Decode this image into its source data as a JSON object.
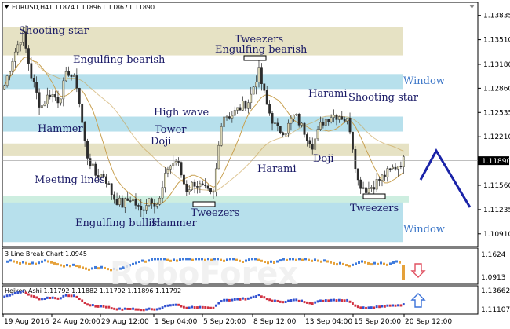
{
  "chart_data": [
    {
      "type": "candlestick",
      "title": "EURUSD,H4",
      "ohlc_header": [
        "1.11874",
        "1.11896",
        "1.11867",
        "1.11890"
      ],
      "current_price": "1.11890",
      "price_ticks": [
        "1.13835",
        "1.13510",
        "1.13180",
        "1.12860",
        "1.12535",
        "1.12210",
        "1.11560",
        "1.11235",
        "1.10910"
      ],
      "ylim": [
        1.1075,
        1.14
      ],
      "time_ticks": [
        "19 Aug 2016",
        "24 Aug 20:00",
        "29 Aug 12:00",
        "1 Sep 04:00",
        "5 Sep 20:00",
        "8 Sep 12:00",
        "13 Sep 04:00",
        "15 Sep 20:00",
        "20 Sep 12:00"
      ],
      "close_path": [
        1.129,
        1.133,
        1.136,
        1.13,
        1.126,
        1.128,
        1.127,
        1.131,
        1.129,
        1.12,
        1.117,
        1.117,
        1.114,
        1.113,
        1.114,
        1.112,
        1.114,
        1.113,
        1.118,
        1.119,
        1.115,
        1.116,
        1.115,
        1.114,
        1.125,
        1.125,
        1.126,
        1.127,
        1.131,
        1.126,
        1.123,
        1.123,
        1.125,
        1.123,
        1.121,
        1.124,
        1.125,
        1.125,
        1.124,
        1.116,
        1.115,
        1.116,
        1.117,
        1.118,
        1.1189
      ],
      "zones": [
        {
          "kind": "resistance",
          "color": "#e6e2c4",
          "from": 1.133,
          "to": 1.1368
        },
        {
          "kind": "window",
          "color": "#b7e0ec",
          "from": 1.1285,
          "to": 1.1305
        },
        {
          "kind": "window",
          "color": "#b7e0ec",
          "from": 1.1228,
          "to": 1.1248
        },
        {
          "kind": "support",
          "color": "#e6e2c4",
          "from": 1.1195,
          "to": 1.1212
        },
        {
          "kind": "window",
          "color": "#b7e0ec",
          "from": 1.108,
          "to": 1.114
        }
      ],
      "patterns": [
        "Shooting star",
        "Engulfing bearish",
        "Tweezers",
        "Engulfing bearish",
        "Hammer",
        "High wave",
        "Tower",
        "Doji",
        "Harami",
        "Shooting star",
        "Meeting lines",
        "Harami",
        "Doji",
        "Engulfing bullish",
        "Hammer",
        "Tweezers",
        "Tweezers"
      ],
      "zone_labels": [
        "Window",
        "Window"
      ],
      "forecast": "down"
    },
    {
      "type": "line",
      "title": "3 Line Break Chart 1.0945",
      "price_ticks": [
        "1.1624",
        "1.0913"
      ],
      "signal": "down"
    },
    {
      "type": "line",
      "title": "Heiken Ashi 1.11792 1.11882 1.11792 1.11896 1.11792",
      "price_ticks": [
        "1.13662",
        "1.11107"
      ],
      "signal": "up"
    }
  ],
  "colors": {
    "bull": "#d8d4b4",
    "bear": "#2c2c2c",
    "ma": "#c8a050",
    "trend": "#1a23a8",
    "arrow_down": "#e05060",
    "arrow_up": "#3b72d8",
    "lb_up": "#3f7bdc",
    "lb_down": "#e5a13a"
  },
  "watermark": "RoboForex"
}
